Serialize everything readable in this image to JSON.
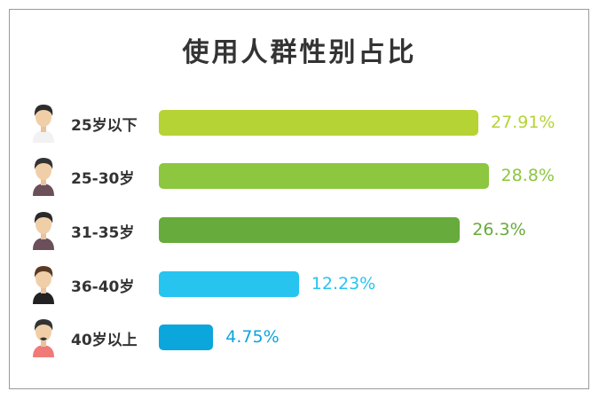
{
  "chart_data": {
    "type": "bar",
    "orientation": "horizontal",
    "title": "使用人群性别占比",
    "categories": [
      "25岁以下",
      "25-30岁",
      "31-35岁",
      "36-40岁",
      "40岁以上"
    ],
    "values": [
      27.91,
      28.8,
      26.3,
      12.23,
      4.75
    ],
    "value_labels": [
      "27.91%",
      "28.8%",
      "26.3%",
      "12.23%",
      "4.75%"
    ],
    "colors": [
      "#b5d334",
      "#8dc63f",
      "#66ab3c",
      "#27c4f0",
      "#0aa6dc"
    ],
    "unit": "%",
    "grid": false,
    "icons": [
      "young-man-avatar-icon",
      "man-avatar-icon",
      "man-tanktop-avatar-icon",
      "man-suit-avatar-icon",
      "man-mustache-avatar-icon"
    ]
  }
}
